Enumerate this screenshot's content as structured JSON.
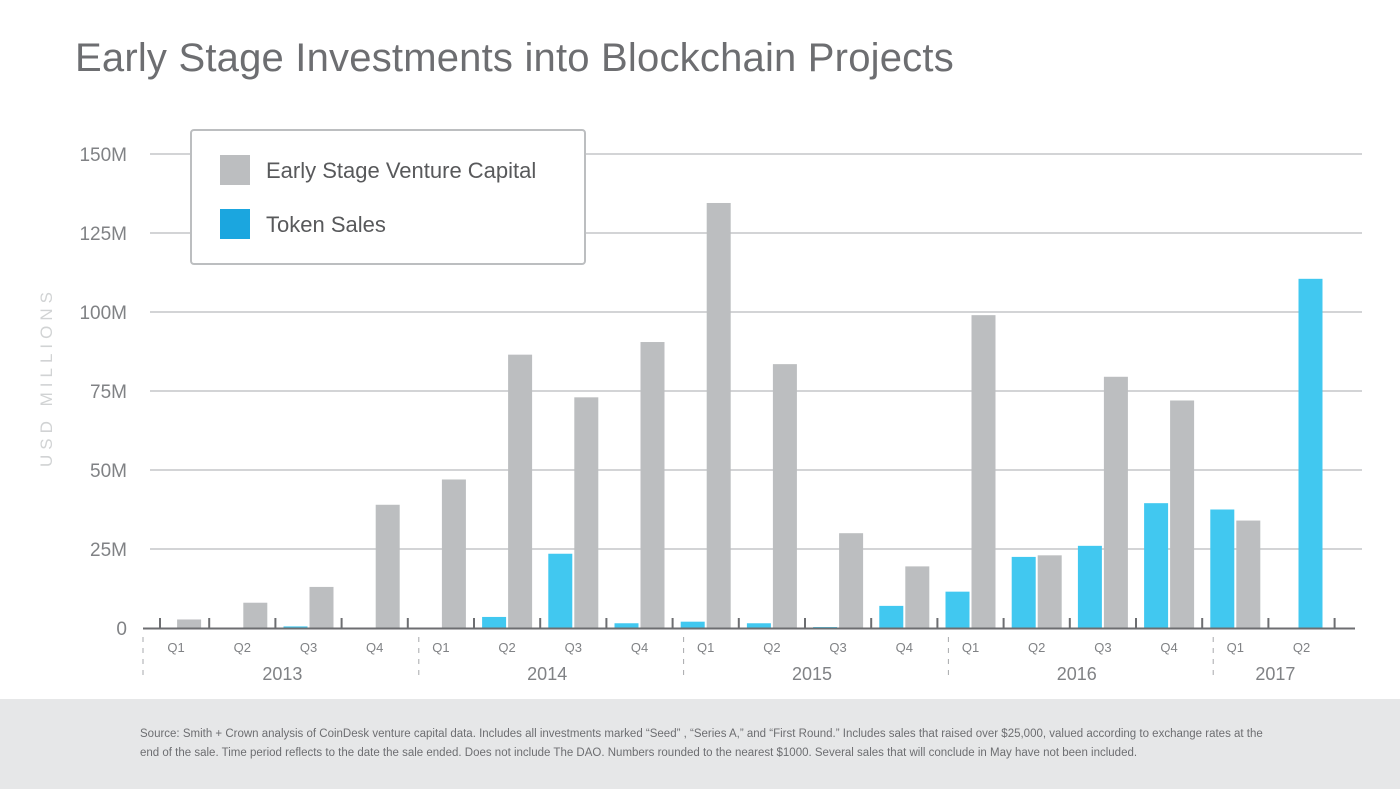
{
  "title": "Early Stage Investments into Blockchain Projects",
  "footnote": "Source: Smith + Crown analysis of CoinDesk venture capital data. Includes all investments marked “Seed” , “Series A,” and “First Round.”  Includes sales that raised over $25,000, valued according to exchange rates at the end of the sale. Time period reflects to the date the sale ended. Does not include The DAO. Numbers rounded to the nearest $1000. Several sales that will conclude in May have not been included.",
  "chart_data": {
    "type": "bar",
    "title": "Early Stage Investments into Blockchain Projects",
    "ylabel": "USD MILLIONS",
    "xlabel": "",
    "ylim": [
      0,
      150
    ],
    "yticks": [
      {
        "value": 0,
        "label": "0"
      },
      {
        "value": 25,
        "label": "25M"
      },
      {
        "value": 50,
        "label": "50M"
      },
      {
        "value": 75,
        "label": "75M"
      },
      {
        "value": 100,
        "label": "100M"
      },
      {
        "value": 125,
        "label": "125M"
      },
      {
        "value": 150,
        "label": "150M"
      }
    ],
    "legend": [
      {
        "name": "Early Stage Venture Capital",
        "color": "#bcbec0"
      },
      {
        "name": "Token Sales",
        "color": "#1ba6df"
      }
    ],
    "colors": {
      "vc": "#bcbec0",
      "token": "#41c8f0"
    },
    "categories": [
      "Q1",
      "Q2",
      "Q3",
      "Q4",
      "Q1",
      "Q2",
      "Q3",
      "Q4",
      "Q1",
      "Q2",
      "Q3",
      "Q4",
      "Q1",
      "Q2",
      "Q3",
      "Q4",
      "Q1",
      "Q2"
    ],
    "years": [
      {
        "label": "2013",
        "quarters": 4
      },
      {
        "label": "2014",
        "quarters": 4
      },
      {
        "label": "2015",
        "quarters": 4
      },
      {
        "label": "2016",
        "quarters": 4
      },
      {
        "label": "2017",
        "quarters": 2
      }
    ],
    "series": [
      {
        "name": "Token Sales",
        "values": [
          0,
          0,
          0.5,
          0,
          0,
          3.5,
          23.5,
          1.5,
          2,
          1.5,
          0.3,
          7,
          11.5,
          22.5,
          26,
          39.5,
          37.5,
          110.5
        ]
      },
      {
        "name": "Early Stage Venture Capital",
        "values": [
          2.7,
          8,
          13,
          39,
          47,
          86.5,
          73,
          90.5,
          134.5,
          83.5,
          30,
          19.5,
          99,
          23,
          79.5,
          72,
          34,
          null
        ]
      }
    ]
  }
}
